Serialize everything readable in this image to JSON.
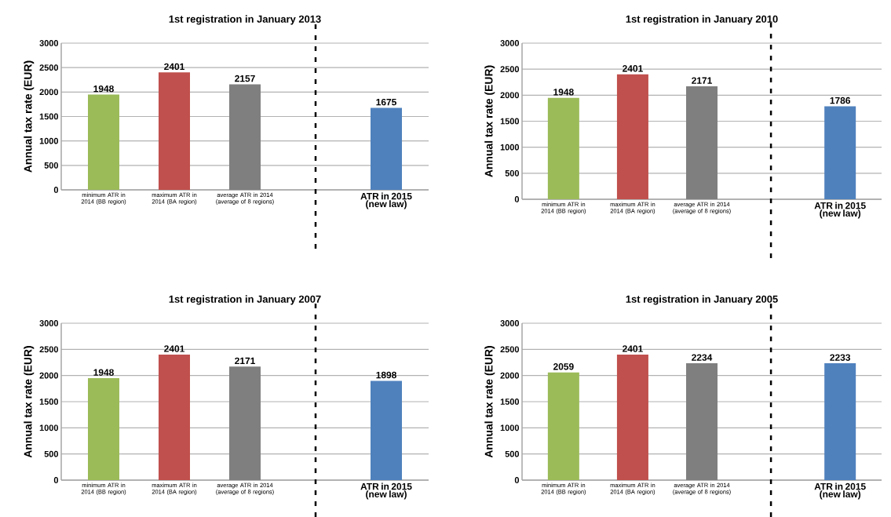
{
  "chart_data": [
    {
      "type": "bar",
      "title": "1st registration in January 2013",
      "ylabel": "Annual tax rate (EUR)",
      "categories": [
        "minimum ATR in 2014 (BB region)",
        "maximum ATR in 2014 (BA region)",
        "average ATR in 2014 (average of 8 regions)",
        null,
        "ATR in 2015 (new law)"
      ],
      "values": [
        1948,
        2401,
        2157,
        null,
        1675
      ],
      "colors": [
        "#9bbb59",
        "#c0504d",
        "#7f7f7f",
        "#7f7f7f",
        "#4f81bd"
      ],
      "ylim": [
        0,
        3000
      ],
      "yticks": [
        0,
        500,
        1000,
        1500,
        2000,
        2500,
        3000
      ],
      "grid": "y",
      "data_labels": true
    },
    {
      "type": "bar",
      "title": "1st registration in January 2010",
      "ylabel": "Annual tax rate (EUR)",
      "categories": [
        "minimum ATR in 2014 (BB region)",
        "maximum ATR in 2014 (BA region)",
        "average ATR in 2014 (average of 8 regions)",
        null,
        "ATR in 2015 (new law)"
      ],
      "values": [
        1948,
        2401,
        2171,
        null,
        1786
      ],
      "colors": [
        "#9bbb59",
        "#c0504d",
        "#7f7f7f",
        "#7f7f7f",
        "#4f81bd"
      ],
      "ylim": [
        0,
        3000
      ],
      "yticks": [
        0,
        500,
        1000,
        1500,
        2000,
        2500,
        3000
      ],
      "grid": "y",
      "data_labels": true
    },
    {
      "type": "bar",
      "title": "1st registration in January 2007",
      "ylabel": "Annual tax rate (EUR)",
      "categories": [
        "minimum ATR in 2014 (BB region)",
        "maximum ATR in 2014 (BA region)",
        "average ATR in 2014 (average of 8 regions)",
        null,
        "ATR in 2015 (new law)"
      ],
      "values": [
        1948,
        2401,
        2171,
        null,
        1898
      ],
      "colors": [
        "#9bbb59",
        "#c0504d",
        "#7f7f7f",
        "#7f7f7f",
        "#4f81bd"
      ],
      "ylim": [
        0,
        3000
      ],
      "yticks": [
        0,
        500,
        1000,
        1500,
        2000,
        2500,
        3000
      ],
      "grid": "y",
      "data_labels": true
    },
    {
      "type": "bar",
      "title": "1st registration in January 2005",
      "ylabel": "Annual tax rate (EUR)",
      "categories": [
        "minimum ATR in 2014 (BB region)",
        "maximum ATR in 2014 (BA region)",
        "average ATR in 2014 (average of 8 regions)",
        null,
        "ATR in 2015 (new law)"
      ],
      "values": [
        2059,
        2401,
        2234,
        null,
        2233
      ],
      "colors": [
        "#9bbb59",
        "#c0504d",
        "#7f7f7f",
        "#7f7f7f",
        "#4f81bd"
      ],
      "ylim": [
        0,
        3000
      ],
      "yticks": [
        0,
        500,
        1000,
        1500,
        2000,
        2500,
        3000
      ],
      "grid": "y",
      "data_labels": true
    }
  ]
}
